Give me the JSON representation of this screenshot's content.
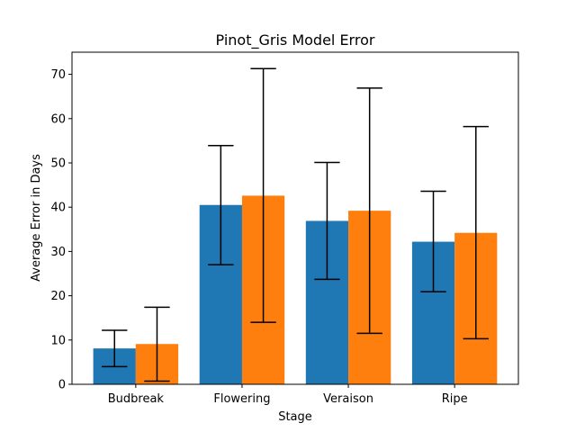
{
  "chart_data": {
    "type": "bar",
    "title": "Pinot_Gris Model Error",
    "xlabel": "Stage",
    "ylabel": "Average Error in Days",
    "categories": [
      "Budbreak",
      "Flowering",
      "Veraison",
      "Ripe"
    ],
    "ylim": [
      0,
      75
    ],
    "yticks": [
      0,
      10,
      20,
      30,
      40,
      50,
      60,
      70
    ],
    "grid": false,
    "legend": "none",
    "series": [
      {
        "color": "#1f77b4",
        "values": [
          8.1,
          40.5,
          36.9,
          32.2
        ],
        "error_low": [
          4.0,
          27.0,
          23.7,
          20.9
        ],
        "error_high": [
          12.2,
          53.9,
          50.1,
          43.6
        ]
      },
      {
        "color": "#ff7f0e",
        "values": [
          9.1,
          42.6,
          39.2,
          34.2
        ],
        "error_low": [
          0.7,
          14.0,
          11.5,
          10.3
        ],
        "error_high": [
          17.4,
          71.3,
          66.9,
          58.2
        ]
      }
    ]
  }
}
